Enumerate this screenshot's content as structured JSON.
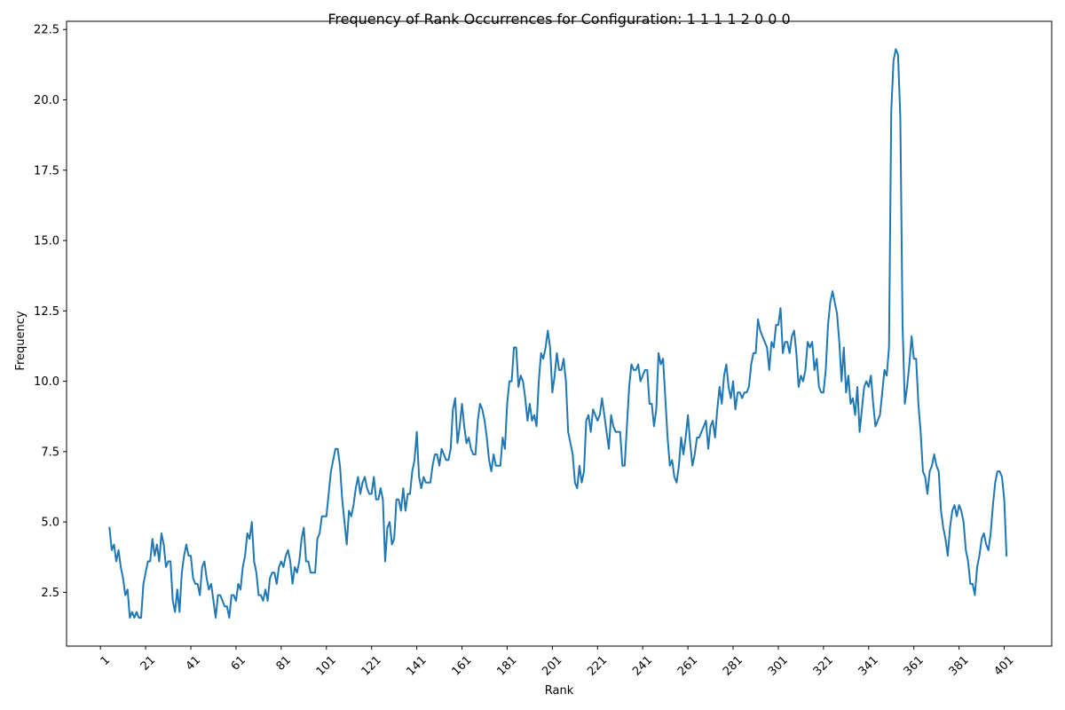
{
  "chart_data": {
    "type": "line",
    "title": "Frequency of Rank Occurrences for Configuration: 1 1 1 1 2 0 0 0",
    "xlabel": "Rank",
    "ylabel": "Frequency",
    "xlim": [
      -14,
      422
    ],
    "ylim": [
      0.59,
      22.79
    ],
    "xticks": [
      1,
      21,
      41,
      61,
      81,
      101,
      121,
      141,
      161,
      181,
      201,
      221,
      241,
      261,
      281,
      301,
      321,
      341,
      361,
      381,
      401
    ],
    "xtick_labels": [
      "1",
      "21",
      "41",
      "61",
      "81",
      "101",
      "121",
      "141",
      "161",
      "181",
      "201",
      "221",
      "241",
      "261",
      "281",
      "301",
      "321",
      "341",
      "361",
      "381",
      "401"
    ],
    "yticks": [
      2.5,
      5.0,
      7.5,
      10.0,
      12.5,
      15.0,
      17.5,
      20.0,
      22.5
    ],
    "ytick_labels": [
      "2.5",
      "5.0",
      "7.5",
      "10.0",
      "12.5",
      "15.0",
      "17.5",
      "20.0",
      "22.5"
    ],
    "grid": false,
    "line_color": "#1f77b4",
    "series": [
      {
        "name": "",
        "x_start": 5,
        "values": [
          4.8,
          4.0,
          4.2,
          3.6,
          4.0,
          3.4,
          3.0,
          2.4,
          2.6,
          1.6,
          1.8,
          1.6,
          1.8,
          1.6,
          1.6,
          2.8,
          3.2,
          3.6,
          3.6,
          4.4,
          3.8,
          4.2,
          3.6,
          4.6,
          4.2,
          3.4,
          3.6,
          3.6,
          2.2,
          1.8,
          2.6,
          1.8,
          3.2,
          3.8,
          4.2,
          3.8,
          3.8,
          3.0,
          2.8,
          2.8,
          2.4,
          3.4,
          3.6,
          3.0,
          2.6,
          2.8,
          2.2,
          1.6,
          2.4,
          2.4,
          2.2,
          2.0,
          2.0,
          1.6,
          2.4,
          2.4,
          2.2,
          2.8,
          2.6,
          3.4,
          3.8,
          4.6,
          4.4,
          5.0,
          3.6,
          3.2,
          2.4,
          2.4,
          2.2,
          2.6,
          2.2,
          3.0,
          3.2,
          3.2,
          2.8,
          3.4,
          3.6,
          3.4,
          3.8,
          4.0,
          3.6,
          2.8,
          3.4,
          3.2,
          3.6,
          4.4,
          4.8,
          3.6,
          3.6,
          3.2,
          3.2,
          3.2,
          4.4,
          4.6,
          5.2,
          5.2,
          5.2,
          6.0,
          6.8,
          7.2,
          7.6,
          7.6,
          7.0,
          5.8,
          5.0,
          4.2,
          5.4,
          5.2,
          5.6,
          6.2,
          6.6,
          6.0,
          6.4,
          6.6,
          6.2,
          6.0,
          6.0,
          6.6,
          5.8,
          5.8,
          6.2,
          5.8,
          3.6,
          4.8,
          5.0,
          4.2,
          4.4,
          5.8,
          5.8,
          5.4,
          6.2,
          5.4,
          6.0,
          6.0,
          6.8,
          7.2,
          8.2,
          6.6,
          6.2,
          6.6,
          6.4,
          6.4,
          6.4,
          7.0,
          7.4,
          7.4,
          7.0,
          7.6,
          7.4,
          7.2,
          7.2,
          7.6,
          9.0,
          9.4,
          7.8,
          8.4,
          9.2,
          8.4,
          7.8,
          8.0,
          7.6,
          7.4,
          7.4,
          8.6,
          9.2,
          9.0,
          8.6,
          8.0,
          7.2,
          6.8,
          7.4,
          7.0,
          7.0,
          7.0,
          8.0,
          7.6,
          9.2,
          10.0,
          10.0,
          11.2,
          11.2,
          9.8,
          10.2,
          10.0,
          9.4,
          8.6,
          9.2,
          8.6,
          8.8,
          8.4,
          10.0,
          11.0,
          10.8,
          11.2,
          11.8,
          11.2,
          9.6,
          10.2,
          11.0,
          10.4,
          10.4,
          10.8,
          10.0,
          8.2,
          7.8,
          7.4,
          6.4,
          6.2,
          7.0,
          6.4,
          6.8,
          8.6,
          8.8,
          8.2,
          9.0,
          8.8,
          8.6,
          8.8,
          9.4,
          8.8,
          8.2,
          7.6,
          8.8,
          8.4,
          8.2,
          8.2,
          8.2,
          7.0,
          7.0,
          8.4,
          9.8,
          10.6,
          10.4,
          10.4,
          10.6,
          10.0,
          10.2,
          10.4,
          10.4,
          9.2,
          9.2,
          8.4,
          9.0,
          11.0,
          10.6,
          10.8,
          9.4,
          8.0,
          7.0,
          7.2,
          6.6,
          6.4,
          7.0,
          8.0,
          7.4,
          8.0,
          8.8,
          7.8,
          7.0,
          7.4,
          8.0,
          8.0,
          8.2,
          8.4,
          8.6,
          7.6,
          8.4,
          8.6,
          8.0,
          9.0,
          9.8,
          9.2,
          10.2,
          10.6,
          9.8,
          9.4,
          10.0,
          9.0,
          9.6,
          9.6,
          9.4,
          9.6,
          9.6,
          9.8,
          10.6,
          11.0,
          11.0,
          12.2,
          11.8,
          11.6,
          11.4,
          11.2,
          10.4,
          11.4,
          11.2,
          12.0,
          12.0,
          12.6,
          11.0,
          11.4,
          11.4,
          11.0,
          11.6,
          11.8,
          11.0,
          9.8,
          10.2,
          10.0,
          10.4,
          11.4,
          11.2,
          11.4,
          10.4,
          10.8,
          9.8,
          9.6,
          9.6,
          10.4,
          12.0,
          12.8,
          13.2,
          12.8,
          12.4,
          11.4,
          10.0,
          11.2,
          9.6,
          10.2,
          9.2,
          9.4,
          8.8,
          9.8,
          8.2,
          9.0,
          9.8,
          10.0,
          9.8,
          10.2,
          9.2,
          8.4,
          8.6,
          8.8,
          9.6,
          10.4,
          10.2,
          11.2,
          19.6,
          21.4,
          21.8,
          21.6,
          19.4,
          12.0,
          9.2,
          9.8,
          10.6,
          11.6,
          10.8,
          10.8,
          9.2,
          8.2,
          6.8,
          6.6,
          6.0,
          6.8,
          7.0,
          7.4,
          7.0,
          6.8,
          5.4,
          4.8,
          4.4,
          3.8,
          4.8,
          5.4,
          5.6,
          5.2,
          5.6,
          5.4,
          5.0,
          4.0,
          3.6,
          2.8,
          2.8,
          2.4,
          3.4,
          3.8,
          4.4,
          4.6,
          4.2,
          4.0,
          4.6,
          5.6,
          6.4,
          6.8,
          6.8,
          6.6,
          5.8,
          3.8
        ]
      }
    ]
  }
}
